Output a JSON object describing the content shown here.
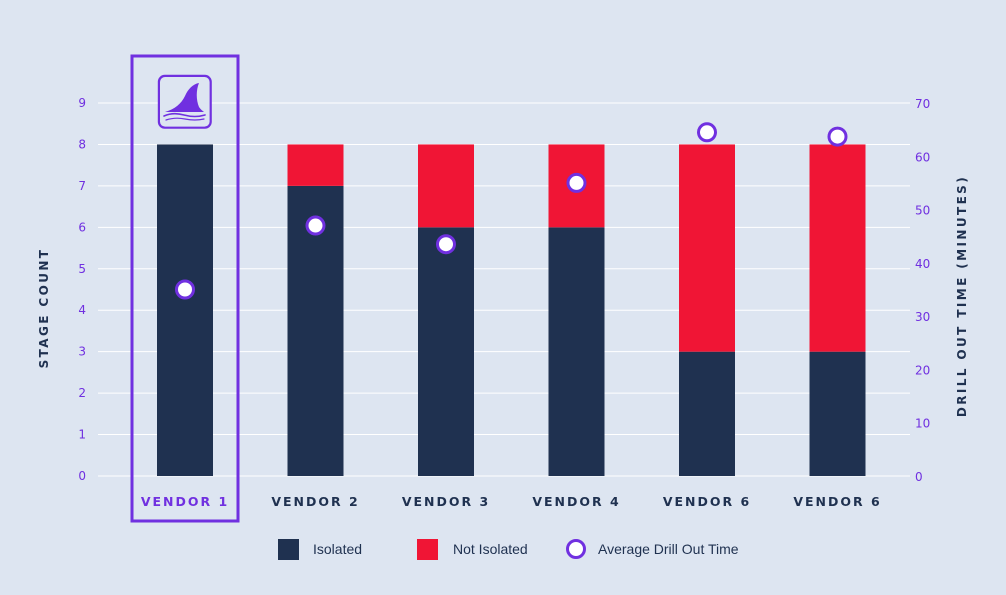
{
  "colors": {
    "background": "#dde5f1",
    "isolated": "#1f3150",
    "not_isolated": "#f01535",
    "accent": "#7030e0",
    "grid": "#ffffff",
    "text_dark": "#1f3150",
    "marker_fill": "#ffffff"
  },
  "icons": {
    "highlight_logo": "shark-fin-logo-icon"
  },
  "chart_data": {
    "type": "bar",
    "stacked": true,
    "categories": [
      "VENDOR 1",
      "VENDOR 2",
      "VENDOR 3",
      "VENDOR 4",
      "VENDOR 6",
      "VENDOR 6"
    ],
    "highlighted_category_index": 0,
    "series": [
      {
        "name": "Isolated",
        "values": [
          8,
          7,
          6,
          6,
          3,
          3
        ],
        "axis": "left"
      },
      {
        "name": "Not Isolated",
        "values": [
          0,
          1,
          2,
          2,
          5,
          5
        ],
        "axis": "left"
      },
      {
        "name": "Average Drill Out Time",
        "type": "scatter",
        "values": [
          35,
          47,
          43.5,
          55,
          64.5,
          63.7
        ],
        "axis": "right"
      }
    ],
    "ylabel": "STAGE COUNT",
    "ylim": [
      0,
      9
    ],
    "yticks": [
      0,
      1,
      2,
      3,
      4,
      5,
      6,
      7,
      8,
      9
    ],
    "y2label": "DRILL OUT TIME (MINUTES)",
    "y2lim": [
      0,
      70
    ],
    "y2ticks": [
      0,
      10,
      20,
      30,
      40,
      50,
      60,
      70
    ],
    "grid": true,
    "legend_position": "bottom"
  }
}
